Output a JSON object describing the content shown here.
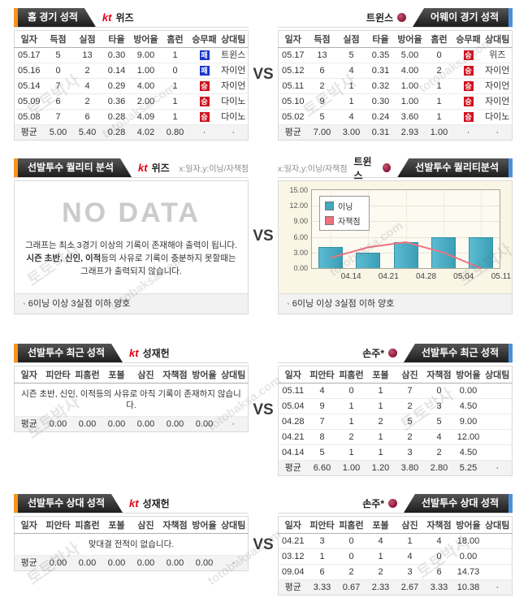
{
  "vs_label": "VS",
  "watermarks": {
    "kr": "토토박사",
    "en": "totobaksa.com"
  },
  "colors": {
    "accent_orange": "#f7941d",
    "accent_blue": "#4a90e2",
    "win_badge": "#d0121f",
    "lose_badge": "#1a35cf",
    "kt_logo_red": "#e60012",
    "bar_teal": "#41a9c0",
    "line_salmon": "#ef7280"
  },
  "game_columns": [
    "일자",
    "득점",
    "실점",
    "타율",
    "방어율",
    "홈런",
    "승무패",
    "상대팀"
  ],
  "pitcher_columns": [
    "일자",
    "피안타",
    "피홈런",
    "포볼",
    "삼진",
    "자책점",
    "방어율",
    "상대팀"
  ],
  "sections": {
    "home": {
      "tab": "홈 경기 성적",
      "logo": "kt",
      "team": "위즈",
      "rows": [
        [
          "05.17",
          "5",
          "13",
          "0.30",
          "9.00",
          "1",
          "패",
          "트윈스"
        ],
        [
          "05.16",
          "0",
          "2",
          "0.14",
          "1.00",
          "0",
          "패",
          "자이언"
        ],
        [
          "05.14",
          "7",
          "4",
          "0.29",
          "4.00",
          "1",
          "승",
          "자이언"
        ],
        [
          "05.09",
          "6",
          "2",
          "0.36",
          "2.00",
          "1",
          "승",
          "다이노"
        ],
        [
          "05.08",
          "7",
          "6",
          "0.28",
          "4.09",
          "1",
          "승",
          "다이노"
        ]
      ],
      "avg": [
        "평균",
        "5.00",
        "5.40",
        "0.28",
        "4.02",
        "0.80",
        "·",
        "·"
      ]
    },
    "away": {
      "tab": "어웨이 경기 성적",
      "team": "트윈스",
      "rows": [
        [
          "05.17",
          "13",
          "5",
          "0.35",
          "5.00",
          "0",
          "승",
          "위즈"
        ],
        [
          "05.12",
          "6",
          "4",
          "0.31",
          "4.00",
          "2",
          "승",
          "자이언"
        ],
        [
          "05.11",
          "2",
          "1",
          "0.32",
          "1.00",
          "1",
          "승",
          "자이언"
        ],
        [
          "05.10",
          "9",
          "1",
          "0.30",
          "1.00",
          "1",
          "승",
          "자이언"
        ],
        [
          "05.02",
          "5",
          "4",
          "0.24",
          "3.60",
          "1",
          "승",
          "다이노"
        ]
      ],
      "avg": [
        "평균",
        "7.00",
        "3.00",
        "0.31",
        "2.93",
        "1.00",
        "·",
        "·"
      ]
    },
    "quality_home": {
      "tab": "선발투수 퀄리티 분석",
      "logo": "kt",
      "team": "위즈",
      "axis_note": "x:일자,y:이닝/자책점",
      "no_data": {
        "title": "NO DATA",
        "line1": "그래프는 최소 3경기 이상의 기록이 존재해야 출력이 됩니다.",
        "line2_bold": "시즌 초반, 신인, 이적",
        "line2_rest": "등의 사유로 기록이 충분하지 못할때는",
        "line3": "그래프가 출력되지 않습니다."
      },
      "footnote": "· 6이닝 이상 3실점 이하 양호"
    },
    "quality_away": {
      "tab": "선발투수 퀄리티분석",
      "team": "트윈스",
      "axis_note": "x:일자,y:이닝/자책점",
      "footnote": "· 6이닝 이상 3실점 이하 양호"
    },
    "recent_home": {
      "tab": "선발투수 최근 성적",
      "logo": "kt",
      "player": "성재헌",
      "message": "시즌 초반, 신인, 이적등의 사유로 아직 기록이 존재하지 않습니다.",
      "avg": [
        "평균",
        "0.00",
        "0.00",
        "0.00",
        "0.00",
        "0.00",
        "0.00",
        "·"
      ]
    },
    "recent_away": {
      "tab": "선발투수 최근 성적",
      "player": "손주*",
      "rows": [
        [
          "05.11",
          "4",
          "0",
          "1",
          "7",
          "0",
          "0.00",
          ""
        ],
        [
          "05.04",
          "9",
          "1",
          "1",
          "2",
          "3",
          "4.50",
          ""
        ],
        [
          "04.28",
          "7",
          "1",
          "2",
          "5",
          "5",
          "9.00",
          ""
        ],
        [
          "04.21",
          "8",
          "2",
          "1",
          "2",
          "4",
          "12.00",
          ""
        ],
        [
          "04.14",
          "5",
          "1",
          "1",
          "3",
          "2",
          "4.50",
          ""
        ]
      ],
      "avg": [
        "평균",
        "6.60",
        "1.00",
        "1.20",
        "3.80",
        "2.80",
        "5.25",
        "·"
      ]
    },
    "versus_home": {
      "tab": "선발투수 상대 성적",
      "logo": "kt",
      "player": "성재헌",
      "message": "맞대결 전적이 없습니다.",
      "avg": [
        "평균",
        "0.00",
        "0.00",
        "0.00",
        "0.00",
        "0.00",
        "0.00",
        "·"
      ]
    },
    "versus_away": {
      "tab": "선발투수 상대 성적",
      "player": "손주*",
      "rows": [
        [
          "04.21",
          "3",
          "0",
          "4",
          "1",
          "4",
          "18.00",
          ""
        ],
        [
          "03.12",
          "1",
          "0",
          "1",
          "4",
          "0",
          "0.00",
          ""
        ],
        [
          "09.04",
          "6",
          "2",
          "2",
          "3",
          "6",
          "14.73",
          ""
        ]
      ],
      "avg": [
        "평균",
        "3.33",
        "0.67",
        "2.33",
        "2.67",
        "3.33",
        "10.38",
        "·"
      ]
    }
  },
  "chart_data": {
    "type": "bar",
    "title": "트윈스 선발투수 퀄리티분석",
    "xlabel": "일자",
    "ylabel": "이닝/자책점",
    "categories": [
      "04.14",
      "04.21",
      "04.28",
      "05.04",
      "05.11"
    ],
    "series": [
      {
        "name": "이닝",
        "type": "bar",
        "color": "#41a9c0",
        "values": [
          4,
          3,
          5,
          6,
          6
        ]
      },
      {
        "name": "자책점",
        "type": "line",
        "color": "#ef7280",
        "values": [
          2,
          4,
          5,
          3,
          0
        ]
      }
    ],
    "ylim": [
      0,
      15
    ],
    "yticks": [
      0,
      3,
      6,
      9,
      12,
      15
    ],
    "ytick_labels": [
      "0.00",
      "3.00",
      "6.00",
      "9.00",
      "12.00",
      "15.00"
    ],
    "legend_position": "top-left",
    "grid": true
  }
}
